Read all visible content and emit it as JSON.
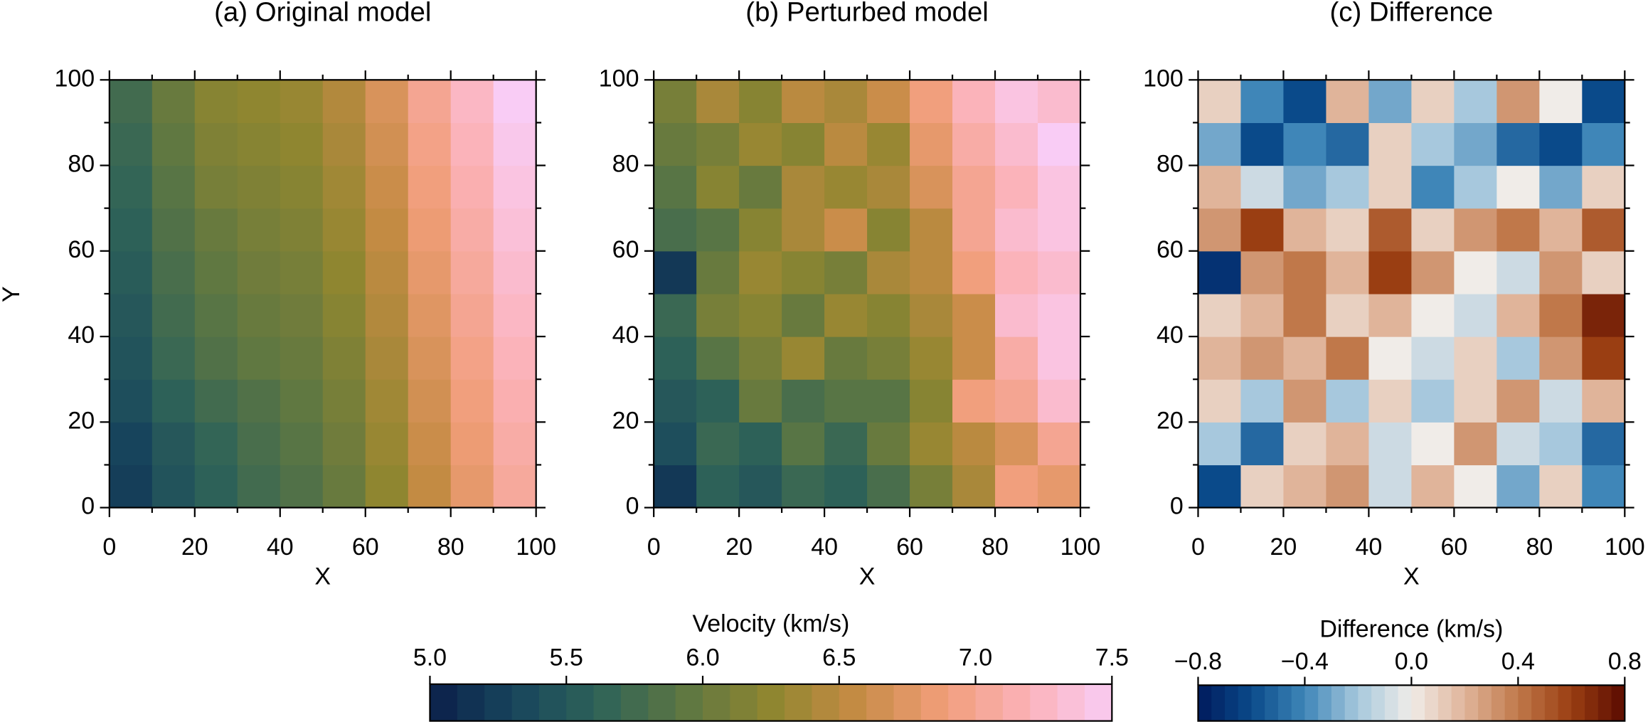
{
  "chart_data": [
    {
      "type": "heatmap",
      "title": "(a) Original model",
      "xlabel": "X",
      "ylabel": "Y",
      "x": [
        5,
        15,
        25,
        35,
        45,
        55,
        65,
        75,
        85,
        95
      ],
      "y": [
        5,
        15,
        25,
        35,
        45,
        55,
        65,
        75,
        85,
        95
      ],
      "z": [
        [
          5.25,
          5.45,
          5.6,
          5.75,
          5.85,
          6.0,
          6.25,
          6.55,
          6.8,
          7.05
        ],
        [
          5.3,
          5.5,
          5.65,
          5.8,
          5.9,
          6.05,
          6.3,
          6.6,
          6.85,
          7.1
        ],
        [
          5.4,
          5.6,
          5.75,
          5.85,
          5.95,
          6.1,
          6.35,
          6.65,
          6.9,
          7.15
        ],
        [
          5.45,
          5.7,
          5.85,
          5.95,
          6.0,
          6.15,
          6.4,
          6.7,
          6.95,
          7.2
        ],
        [
          5.5,
          5.75,
          5.9,
          6.0,
          6.05,
          6.2,
          6.45,
          6.75,
          7.0,
          7.25
        ],
        [
          5.55,
          5.8,
          5.95,
          6.05,
          6.1,
          6.25,
          6.5,
          6.8,
          7.05,
          7.3
        ],
        [
          5.6,
          5.85,
          6.0,
          6.1,
          6.15,
          6.3,
          6.55,
          6.85,
          7.1,
          7.35
        ],
        [
          5.65,
          5.9,
          6.1,
          6.15,
          6.2,
          6.35,
          6.6,
          6.9,
          7.15,
          7.4
        ],
        [
          5.7,
          5.95,
          6.15,
          6.2,
          6.25,
          6.4,
          6.65,
          6.95,
          7.2,
          7.45
        ],
        [
          5.75,
          6.0,
          6.2,
          6.25,
          6.3,
          6.45,
          6.7,
          7.0,
          7.25,
          7.5
        ]
      ],
      "xlim": [
        0,
        100
      ],
      "ylim": [
        0,
        100
      ],
      "xticks": [
        0,
        20,
        40,
        60,
        80,
        100
      ],
      "yticks": [
        0,
        20,
        40,
        60,
        80,
        100
      ],
      "minorticks": [
        10,
        30,
        50,
        70,
        90
      ],
      "clim": [
        5,
        7.5
      ],
      "colormap": [
        "#0b1f4a",
        "#18465d",
        "#2f6358",
        "#5e7742",
        "#8f8630",
        "#c58b44",
        "#f09d78",
        "#fbb2b8",
        "#f9ccf5"
      ]
    },
    {
      "type": "heatmap",
      "title": "(b) Perturbed model",
      "xlabel": "X",
      "x": [
        5,
        15,
        25,
        35,
        45,
        55,
        65,
        75,
        85,
        95
      ],
      "y": [
        5,
        15,
        25,
        35,
        45,
        55,
        65,
        75,
        85,
        95
      ],
      "z": [
        [
          5.2,
          5.6,
          5.5,
          5.7,
          5.6,
          5.8,
          6.1,
          6.4,
          6.9,
          6.8
        ],
        [
          5.4,
          5.7,
          5.6,
          5.9,
          5.7,
          6.0,
          6.3,
          6.5,
          6.7,
          7.0
        ],
        [
          5.5,
          5.6,
          6.0,
          5.8,
          5.9,
          5.9,
          6.2,
          6.9,
          7.0,
          7.3
        ],
        [
          5.6,
          5.9,
          6.1,
          6.3,
          6.0,
          6.1,
          6.3,
          6.6,
          7.1,
          7.4
        ],
        [
          5.7,
          6.1,
          6.2,
          6.0,
          6.3,
          6.2,
          6.4,
          6.6,
          7.3,
          7.4
        ],
        [
          5.2,
          6.0,
          6.3,
          6.2,
          6.1,
          6.4,
          6.5,
          6.9,
          7.2,
          7.3
        ],
        [
          5.8,
          5.9,
          6.2,
          6.4,
          6.6,
          6.2,
          6.5,
          7.0,
          7.3,
          7.4
        ],
        [
          5.9,
          6.2,
          6.0,
          6.4,
          6.3,
          6.4,
          6.7,
          7.0,
          7.2,
          7.4
        ],
        [
          6.0,
          6.1,
          6.3,
          6.2,
          6.5,
          6.3,
          6.8,
          7.1,
          7.3,
          7.5
        ],
        [
          6.1,
          6.4,
          6.2,
          6.5,
          6.4,
          6.6,
          6.9,
          7.2,
          7.4,
          7.3
        ]
      ],
      "xlim": [
        0,
        100
      ],
      "ylim": [
        0,
        100
      ],
      "xticks": [
        0,
        20,
        40,
        60,
        80,
        100
      ],
      "yticks": [
        0,
        20,
        40,
        60,
        80,
        100
      ],
      "minorticks": [
        10,
        30,
        50,
        70,
        90
      ],
      "clim": [
        5,
        7.5
      ],
      "colormap": [
        "#0b1f4a",
        "#18465d",
        "#2f6358",
        "#5e7742",
        "#8f8630",
        "#c58b44",
        "#f09d78",
        "#fbb2b8",
        "#f9ccf5"
      ],
      "colorbar": {
        "label": "Velocity (km/s)",
        "step": 0.1,
        "ticks": [
          {
            "value": 5,
            "label": "5.0"
          },
          5.5,
          {
            "value": 6,
            "label": "6.0"
          },
          6.5,
          {
            "value": 7,
            "label": "7.0"
          },
          7.5
        ]
      }
    },
    {
      "type": "heatmap",
      "title": "(c) Difference",
      "xlabel": "X",
      "x": [
        5,
        15,
        25,
        35,
        45,
        55,
        65,
        75,
        85,
        95
      ],
      "y": [
        5,
        15,
        25,
        35,
        45,
        55,
        65,
        75,
        85,
        95
      ],
      "z": [
        [
          -0.6,
          0.1,
          0.2,
          0.3,
          -0.1,
          0.2,
          0.0,
          -0.3,
          0.1,
          -0.4
        ],
        [
          -0.2,
          -0.5,
          0.1,
          0.2,
          -0.1,
          0.0,
          0.3,
          -0.1,
          -0.2,
          -0.5
        ],
        [
          0.1,
          -0.2,
          0.3,
          -0.2,
          0.1,
          -0.2,
          0.1,
          0.3,
          -0.1,
          0.2
        ],
        [
          0.2,
          0.3,
          0.2,
          0.4,
          0.0,
          -0.1,
          0.1,
          -0.2,
          0.3,
          0.6
        ],
        [
          0.1,
          0.2,
          0.4,
          0.1,
          0.2,
          0.0,
          -0.1,
          0.2,
          0.4,
          0.7
        ],
        [
          -0.7,
          0.3,
          0.4,
          0.2,
          0.6,
          0.3,
          0.0,
          -0.1,
          0.3,
          0.1
        ],
        [
          0.3,
          0.6,
          0.2,
          0.1,
          0.5,
          0.1,
          0.3,
          0.4,
          0.2,
          0.5
        ],
        [
          0.2,
          -0.1,
          -0.3,
          -0.2,
          0.1,
          -0.4,
          -0.2,
          0.0,
          -0.3,
          0.1
        ],
        [
          -0.3,
          -0.6,
          -0.4,
          -0.5,
          0.1,
          -0.2,
          -0.3,
          -0.5,
          -0.6,
          -0.4
        ],
        [
          0.1,
          -0.4,
          -0.6,
          0.2,
          -0.3,
          0.1,
          -0.2,
          0.3,
          0.0,
          -0.6
        ]
      ],
      "xlim": [
        0,
        100
      ],
      "ylim": [
        0,
        100
      ],
      "xticks": [
        0,
        20,
        40,
        60,
        80,
        100
      ],
      "yticks": [
        0,
        20,
        40,
        60,
        80,
        100
      ],
      "minorticks": [
        10,
        30,
        50,
        70,
        90
      ],
      "clim": [
        -0.8,
        0.8
      ],
      "colormap": [
        "#001a5c",
        "#0a4a8a",
        "#3f86b8",
        "#a7c8dd",
        "#f0ece8",
        "#e0b49a",
        "#c0784a",
        "#9a3e12",
        "#5a0a00"
      ],
      "colorbar": {
        "label": "Difference (km/s)",
        "step": 0.05,
        "ticks": [
          {
            "value": -0.8,
            "label": "−0.8"
          },
          {
            "value": -0.4,
            "label": "−0.4"
          },
          {
            "value": 0,
            "label": "0.0"
          },
          0.4,
          0.8
        ]
      }
    }
  ]
}
